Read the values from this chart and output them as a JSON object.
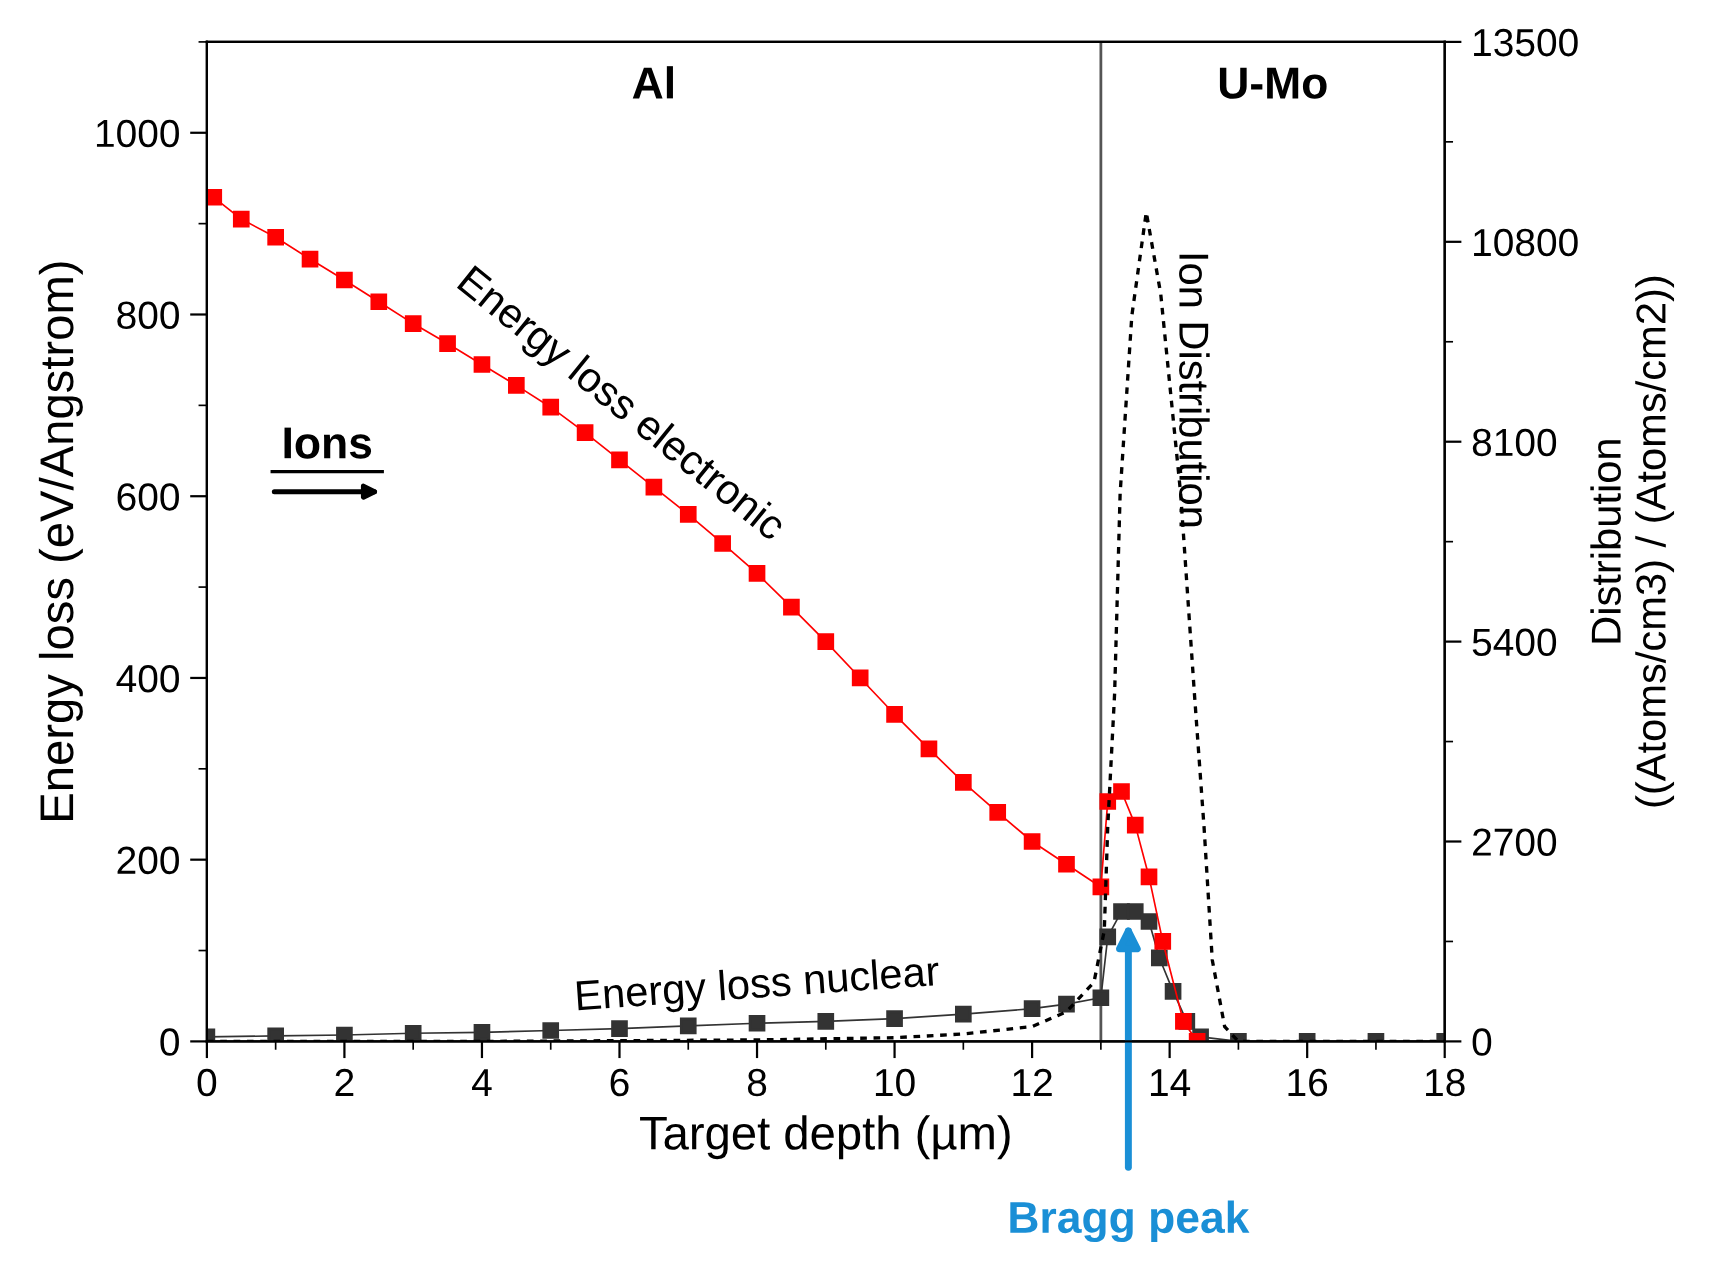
{
  "chart_data": {
    "type": "line",
    "xlabel": "Target depth (µm)",
    "ylabel": "Energy loss (eV/Angstrom)",
    "y2label": "Distribution\n((Atoms/cm3) / (Atoms/cm2))",
    "xlim": [
      0,
      18
    ],
    "xticks": [
      0,
      2,
      4,
      6,
      8,
      10,
      12,
      14,
      16,
      18
    ],
    "ylim": [
      0,
      1100
    ],
    "yticks": [
      0,
      200,
      400,
      600,
      800,
      1000
    ],
    "y2lim": [
      0,
      13500
    ],
    "y2ticks": [
      0,
      2700,
      5400,
      8100,
      10800,
      13500
    ],
    "grid": false,
    "legend": false,
    "series": [
      {
        "name": "Energy loss electronic",
        "color": "#ff0000",
        "marker": "square",
        "line_style": "solid",
        "x": [
          0.1,
          0.5,
          1,
          1.5,
          2,
          2.5,
          3,
          3.5,
          4,
          4.5,
          5,
          5.5,
          6,
          6.5,
          7,
          7.5,
          8,
          8.5,
          9,
          9.5,
          10,
          10.5,
          11,
          11.5,
          12,
          12.5,
          13,
          13.1,
          13.3,
          13.5,
          13.7,
          13.9,
          14.2,
          14.4
        ],
        "values": [
          929,
          905,
          885,
          861,
          838,
          814,
          790,
          768,
          745,
          722,
          698,
          670,
          640,
          610,
          580,
          548,
          515,
          478,
          440,
          400,
          360,
          322,
          285,
          252,
          220,
          195,
          170,
          264,
          275,
          238,
          181,
          110,
          22,
          0
        ]
      },
      {
        "name": "Energy loss nuclear",
        "color": "#333333",
        "marker": "square",
        "line_style": "solid",
        "x": [
          0,
          1,
          2,
          3,
          4,
          5,
          6,
          7,
          8,
          9,
          10,
          11,
          12,
          12.5,
          13,
          13.1,
          13.3,
          13.5,
          13.7,
          13.85,
          14.05,
          14.25,
          14.45,
          15,
          16,
          17,
          18
        ],
        "values": [
          5,
          6,
          7,
          9,
          10,
          12,
          14,
          17,
          20,
          22,
          25,
          30,
          36,
          41,
          48,
          115,
          143,
          143,
          132,
          92,
          55,
          22,
          5,
          0,
          0,
          0,
          0
        ]
      },
      {
        "name": "Ion Distribution",
        "color": "#000000",
        "marker": "none",
        "line_style": "dashed",
        "axis": "y2",
        "x": [
          0,
          4,
          8,
          10,
          11,
          12,
          12.5,
          12.9,
          13.05,
          13.1,
          13.2,
          13.28,
          13.45,
          13.66,
          13.87,
          14.16,
          14.36,
          14.5,
          14.62,
          14.8,
          15,
          16,
          18
        ],
        "values": [
          0,
          0,
          20,
          50,
          100,
          200,
          400,
          800,
          1500,
          2900,
          4700,
          7400,
          9800,
          11200,
          10100,
          7400,
          4700,
          2900,
          1100,
          200,
          0,
          0,
          0
        ]
      }
    ],
    "ref_lines": [
      {
        "axis": "x",
        "value": 13,
        "color": "#555555",
        "line_style": "solid"
      }
    ],
    "annotations": [
      "Al",
      "U-Mo",
      "Ions",
      {
        "text": "Bragg peak",
        "x": 13.4,
        "y": 130
      }
    ]
  }
}
